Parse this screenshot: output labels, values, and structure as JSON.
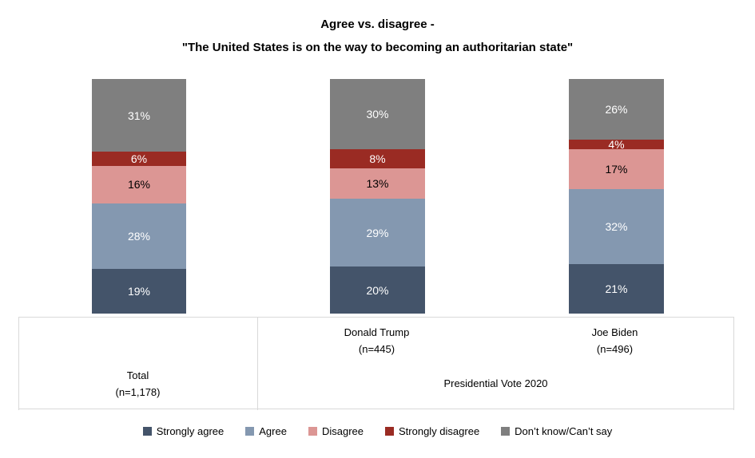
{
  "chart_data": {
    "type": "bar",
    "stacked": true,
    "orientation": "vertical",
    "title": "Agree vs. disagree -\n\"The United States is on the way to becoming an authoritarian state\"",
    "title_line1": "Agree vs. disagree -",
    "title_line2": "\"The United States is on the way to becoming an authoritarian state\"",
    "ylim": [
      0,
      100
    ],
    "grid": false,
    "legend_position": "bottom",
    "categories": [
      {
        "label": "Total",
        "sub": "(n=1,178)"
      },
      {
        "label": "Donald Trump",
        "sub": "(n=445)"
      },
      {
        "label": "Joe Biden",
        "sub": "(n=496)"
      }
    ],
    "group_label": "Presidential Vote 2020",
    "series": [
      {
        "name": "Strongly agree",
        "color": "#44546A",
        "label_color": "#FFFFFF",
        "values": [
          19,
          20,
          21
        ]
      },
      {
        "name": "Agree",
        "color": "#8498B0",
        "label_color": "#FFFFFF",
        "values": [
          28,
          29,
          32
        ]
      },
      {
        "name": "Disagree",
        "color": "#DC9694",
        "label_color": "#000000",
        "values": [
          16,
          13,
          17
        ]
      },
      {
        "name": "Strongly disagree",
        "color": "#9A2B23",
        "label_color": "#FFFFFF",
        "values": [
          6,
          8,
          4
        ]
      },
      {
        "name": "Don’t know/Can’t say",
        "color": "#7F7F7F",
        "label_color": "#FFFFFF",
        "values": [
          31,
          30,
          26
        ]
      }
    ],
    "value_suffix": "%",
    "colors": {
      "axis_border": "#D9D9D9",
      "text": "#000000"
    }
  }
}
